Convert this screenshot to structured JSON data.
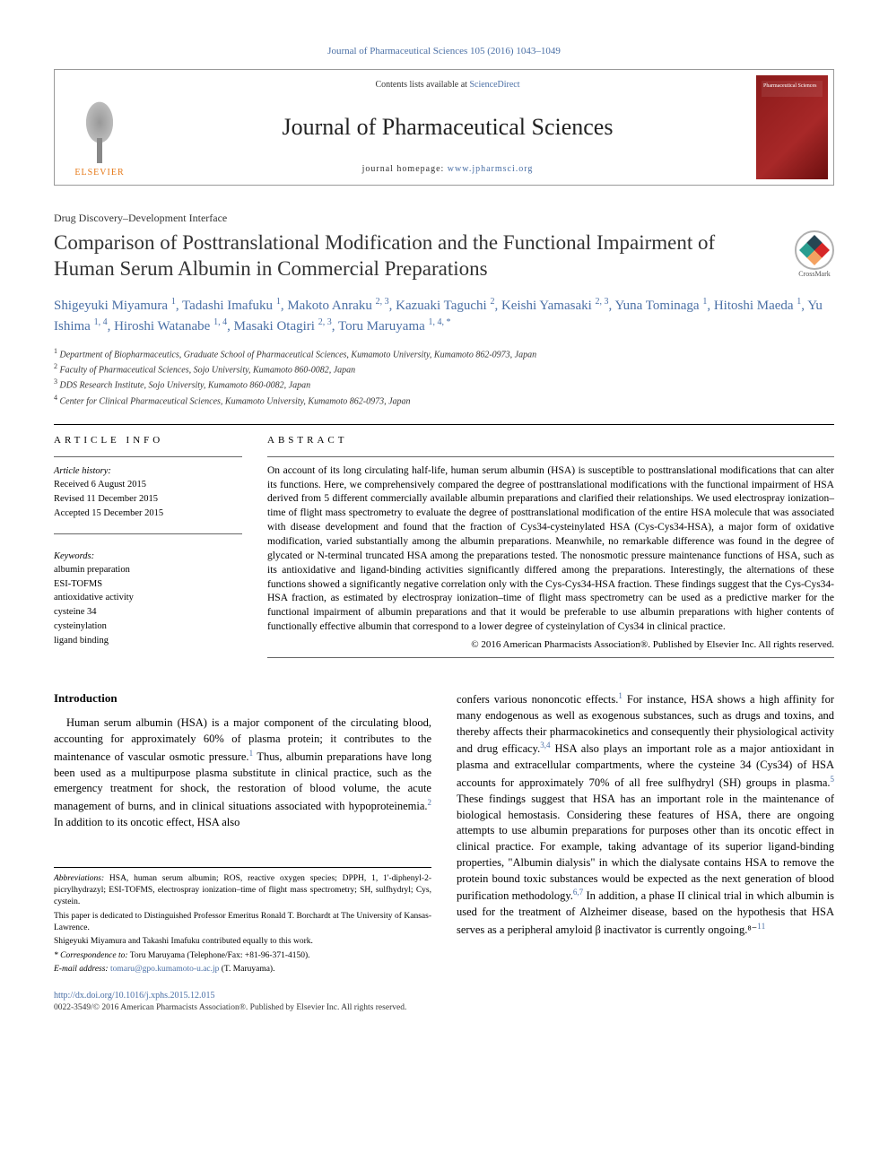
{
  "colors": {
    "link": "#4a6fa5",
    "elsevier_orange": "#e67817",
    "cover_red": "#8b1a1a",
    "text": "#000000"
  },
  "journal_ref": "Journal of Pharmaceutical Sciences 105 (2016) 1043–1049",
  "banner": {
    "publisher": "ELSEVIER",
    "contents_prefix": "Contents lists available at ",
    "contents_link": "ScienceDirect",
    "journal_name": "Journal of Pharmaceutical Sciences",
    "homepage_prefix": "journal homepage: ",
    "homepage_link": "www.jpharmsci.org",
    "cover_label": "Pharmaceutical Sciences"
  },
  "article_type": "Drug Discovery–Development Interface",
  "title": "Comparison of Posttranslational Modification and the Functional Impairment of Human Serum Albumin in Commercial Preparations",
  "crossmark_label": "CrossMark",
  "authors_html": "Shigeyuki Miyamura <sup>1</sup>, Tadashi Imafuku <sup>1</sup>, Makoto Anraku <sup>2, 3</sup>, Kazuaki Taguchi <sup>2</sup>, Keishi Yamasaki <sup>2, 3</sup>, Yuna Tominaga <sup>1</sup>, Hitoshi Maeda <sup>1</sup>, Yu Ishima <sup>1, 4</sup>, Hiroshi Watanabe <sup>1, 4</sup>, Masaki Otagiri <sup>2, 3</sup>, Toru Maruyama <sup>1, 4, *</sup>",
  "affiliations": [
    "Department of Biopharmaceutics, Graduate School of Pharmaceutical Sciences, Kumamoto University, Kumamoto 862-0973, Japan",
    "Faculty of Pharmaceutical Sciences, Sojo University, Kumamoto 860-0082, Japan",
    "DDS Research Institute, Sojo University, Kumamoto 860-0082, Japan",
    "Center for Clinical Pharmaceutical Sciences, Kumamoto University, Kumamoto 862-0973, Japan"
  ],
  "info": {
    "label": "ARTICLE INFO",
    "history_head": "Article history:",
    "history": [
      "Received 6 August 2015",
      "Revised 11 December 2015",
      "Accepted 15 December 2015"
    ],
    "keywords_head": "Keywords:",
    "keywords": [
      "albumin preparation",
      "ESI-TOFMS",
      "antioxidative activity",
      "cysteine 34",
      "cysteinylation",
      "ligand binding"
    ]
  },
  "abstract": {
    "label": "ABSTRACT",
    "text": "On account of its long circulating half-life, human serum albumin (HSA) is susceptible to posttranslational modifications that can alter its functions. Here, we comprehensively compared the degree of posttranslational modifications with the functional impairment of HSA derived from 5 different commercially available albumin preparations and clarified their relationships. We used electrospray ionization–time of flight mass spectrometry to evaluate the degree of posttranslational modification of the entire HSA molecule that was associated with disease development and found that the fraction of Cys34-cysteinylated HSA (Cys-Cys34-HSA), a major form of oxidative modification, varied substantially among the albumin preparations. Meanwhile, no remarkable difference was found in the degree of glycated or N-terminal truncated HSA among the preparations tested. The nonosmotic pressure maintenance functions of HSA, such as its antioxidative and ligand-binding activities significantly differed among the preparations. Interestingly, the alternations of these functions showed a significantly negative correlation only with the Cys-Cys34-HSA fraction. These findings suggest that the Cys-Cys34-HSA fraction, as estimated by electrospray ionization–time of flight mass spectrometry can be used as a predictive marker for the functional impairment of albumin preparations and that it would be preferable to use albumin preparations with higher contents of functionally effective albumin that correspond to a lower degree of cysteinylation of Cys34 in clinical practice.",
    "copyright": "© 2016 American Pharmacists Association®. Published by Elsevier Inc. All rights reserved."
  },
  "body": {
    "intro_head": "Introduction",
    "col1": "Human serum albumin (HSA) is a major component of the circulating blood, accounting for approximately 60% of plasma protein; it contributes to the maintenance of vascular osmotic pressure.¹ Thus, albumin preparations have long been used as a multipurpose plasma substitute in clinical practice, such as the emergency treatment for shock, the restoration of blood volume, the acute management of burns, and in clinical situations associated with hypoproteinemia.² In addition to its oncotic effect, HSA also",
    "col2": "confers various nononcotic effects.¹ For instance, HSA shows a high affinity for many endogenous as well as exogenous substances, such as drugs and toxins, and thereby affects their pharmacokinetics and consequently their physiological activity and drug efficacy.³,⁴ HSA also plays an important role as a major antioxidant in plasma and extracellular compartments, where the cysteine 34 (Cys34) of HSA accounts for approximately 70% of all free sulfhydryl (SH) groups in plasma.⁵ These findings suggest that HSA has an important role in the maintenance of biological hemostasis. Considering these features of HSA, there are ongoing attempts to use albumin preparations for purposes other than its oncotic effect in clinical practice. For example, taking advantage of its superior ligand-binding properties, \"Albumin dialysis\" in which the dialysate contains HSA to remove the protein bound toxic substances would be expected as the next generation of blood purification methodology.⁶,⁷ In addition, a phase II clinical trial in which albumin is used for the treatment of Alzheimer disease, based on the hypothesis that HSA serves as a peripheral amyloid β inactivator is currently ongoing.⁸⁻¹¹"
  },
  "footnotes": {
    "abbrev_head": "Abbreviations:",
    "abbrev": " HSA, human serum albumin; ROS, reactive oxygen species; DPPH, 1, 1'-diphenyl-2-picrylhydrazyl; ESI-TOFMS, electrospray ionization–time of flight mass spectrometry; SH, sulfhydryl; Cys, cystein.",
    "dedication": "This paper is dedicated to Distinguished Professor Emeritus Ronald T. Borchardt at The University of Kansas-Lawrence.",
    "contrib": "Shigeyuki Miyamura and Takashi Imafuku contributed equally to this work.",
    "corr_head": "* Correspondence to:",
    "corr": " Toru Maruyama (Telephone/Fax: +81-96-371-4150).",
    "email_head": "E-mail address:",
    "email": "tomaru@gpo.kumamoto-u.ac.jp",
    "email_suffix": " (T. Maruyama)."
  },
  "doi": {
    "url": "http://dx.doi.org/10.1016/j.xphs.2015.12.015",
    "issn_copy": "0022-3549/© 2016 American Pharmacists Association®. Published by Elsevier Inc. All rights reserved."
  }
}
